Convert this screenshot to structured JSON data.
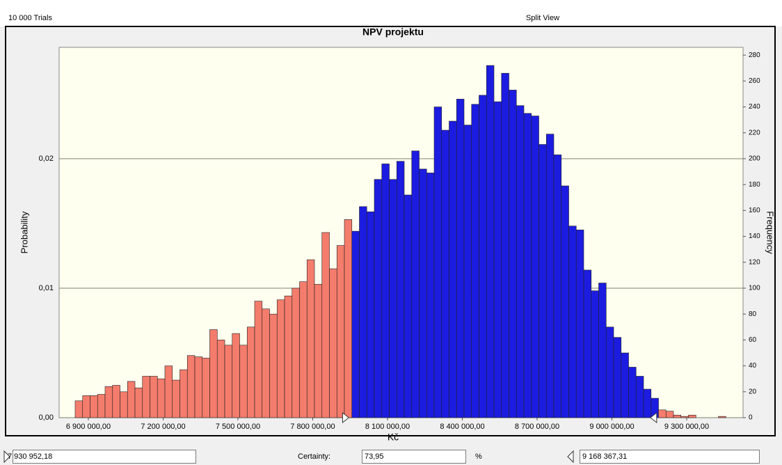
{
  "header": {
    "trials": "10 000 Trials",
    "view": "Split View"
  },
  "footer": {
    "certainty_label": "Certainty:",
    "certainty": {
      "value": 73.95,
      "label": "73,95"
    },
    "certainty_unit": "%"
  },
  "chart_data": {
    "type": "histogram",
    "title": "NPV projektu",
    "xlabel": "Kč",
    "ylabel": "Probability",
    "y2label": "Frequency",
    "bins": [
      6847000,
      6877000,
      6907000,
      6937000,
      6967000,
      6997000,
      7027000,
      7057000,
      7087000,
      7117000,
      7147000,
      7177000,
      7207000,
      7237000,
      7267000,
      7297000,
      7327000,
      7357000,
      7387000,
      7417000,
      7447000,
      7477000,
      7507000,
      7537000,
      7567000,
      7597000,
      7627000,
      7657000,
      7687000,
      7717000,
      7747000,
      7777000,
      7807000,
      7837000,
      7867000,
      7897000,
      7927000,
      7957000,
      7987000,
      8017000,
      8047000,
      8077000,
      8107000,
      8137000,
      8167000,
      8197000,
      8227000,
      8257000,
      8287000,
      8317000,
      8347000,
      8377000,
      8407000,
      8437000,
      8467000,
      8497000,
      8527000,
      8557000,
      8587000,
      8617000,
      8647000,
      8677000,
      8707000,
      8737000,
      8767000,
      8797000,
      8827000,
      8857000,
      8887000,
      8917000,
      8947000,
      8977000,
      9007000,
      9037000,
      9067000,
      9097000,
      9127000,
      9157000,
      9187000,
      9217000,
      9247000,
      9277000,
      9307000,
      9337000,
      9367000,
      9397000,
      9427000,
      9457000
    ],
    "series": [
      {
        "name": "Frequency",
        "axis": "y2",
        "values": [
          13,
          17,
          17,
          18,
          24,
          25,
          20,
          28,
          23,
          32,
          32,
          30,
          40,
          29,
          37,
          48,
          47,
          46,
          68,
          60,
          56,
          65,
          56,
          70,
          90,
          84,
          80,
          91,
          94,
          100,
          105,
          122,
          103,
          143,
          115,
          133,
          153,
          144,
          163,
          159,
          184,
          196,
          184,
          198,
          172,
          206,
          192,
          189,
          240,
          222,
          229,
          246,
          226,
          242,
          249,
          272,
          244,
          266,
          253,
          241,
          235,
          233,
          211,
          219,
          203,
          179,
          148,
          145,
          114,
          98,
          104,
          70,
          62,
          50,
          39,
          32,
          22,
          15,
          6,
          5,
          2,
          1,
          2,
          0,
          0,
          0,
          1
        ]
      }
    ],
    "in_range_color": "#1c1ce0",
    "out_range_color": "#f47c6c",
    "certainty_range": [
      {
        "value": 7930952.18,
        "label": "7 930 952,18"
      },
      {
        "value": 9168367.31,
        "label": "9 168 367,31"
      }
    ],
    "xlim": [
      6782800,
      9526000
    ],
    "xticks": [
      {
        "value": 6900000,
        "label": "6 900 000,00"
      },
      {
        "value": 7200000,
        "label": "7 200 000,00"
      },
      {
        "value": 7500000,
        "label": "7 500 000,00"
      },
      {
        "value": 7800000,
        "label": "7 800 000,00"
      },
      {
        "value": 8100000,
        "label": "8 100 000,00"
      },
      {
        "value": 8400000,
        "label": "8 400 000,00"
      },
      {
        "value": 8700000,
        "label": "8 700 000,00"
      },
      {
        "value": 9000000,
        "label": "9 000 000,00"
      },
      {
        "value": 9300000,
        "label": "9 300 000,00"
      }
    ],
    "ylim": [
      0,
      0.0286
    ],
    "yticks": [
      {
        "value": 0,
        "label": "0,00"
      },
      {
        "value": 0.01,
        "label": "0,01"
      },
      {
        "value": 0.02,
        "label": "0,02"
      }
    ],
    "y2lim": [
      0,
      286
    ],
    "y2ticks": [
      0,
      20,
      40,
      60,
      80,
      100,
      120,
      140,
      160,
      180,
      200,
      220,
      240,
      260,
      280
    ],
    "grid": true
  }
}
